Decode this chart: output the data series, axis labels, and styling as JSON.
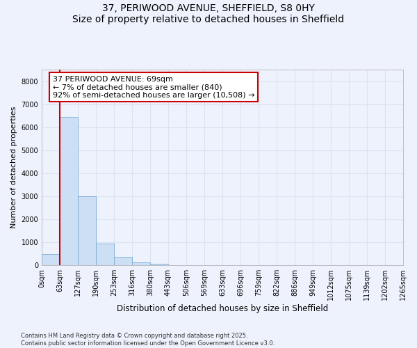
{
  "title_line1": "37, PERIWOOD AVENUE, SHEFFIELD, S8 0HY",
  "title_line2": "Size of property relative to detached houses in Sheffield",
  "xlabel": "Distribution of detached houses by size in Sheffield",
  "ylabel": "Number of detached properties",
  "bar_color": "#ccdff5",
  "bar_edge_color": "#7aacd4",
  "highlight_color": "#cc0000",
  "background_color": "#eef2fc",
  "grid_color": "#d8e4f0",
  "annotation_text": "37 PERIWOOD AVENUE: 69sqm\n← 7% of detached houses are smaller (840)\n92% of semi-detached houses are larger (10,508) →",
  "annotation_box_color": "#ffffff",
  "annotation_box_edge": "#cc0000",
  "bin_labels": [
    "0sqm",
    "63sqm",
    "127sqm",
    "190sqm",
    "253sqm",
    "316sqm",
    "380sqm",
    "443sqm",
    "506sqm",
    "569sqm",
    "633sqm",
    "696sqm",
    "759sqm",
    "822sqm",
    "886sqm",
    "949sqm",
    "1012sqm",
    "1075sqm",
    "1139sqm",
    "1202sqm",
    "1265sqm"
  ],
  "bar_values": [
    490,
    6450,
    3000,
    950,
    380,
    130,
    50,
    10,
    5,
    2,
    1,
    0,
    0,
    0,
    0,
    0,
    0,
    0,
    0,
    0
  ],
  "ylim": [
    0,
    8500
  ],
  "yticks": [
    0,
    1000,
    2000,
    3000,
    4000,
    5000,
    6000,
    7000,
    8000
  ],
  "footnote": "Contains HM Land Registry data © Crown copyright and database right 2025.\nContains public sector information licensed under the Open Government Licence v3.0.",
  "figsize": [
    6.0,
    5.0
  ],
  "dpi": 100
}
